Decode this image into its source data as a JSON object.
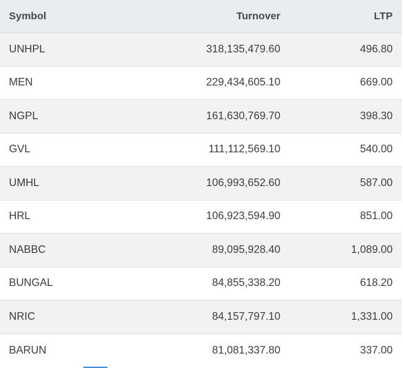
{
  "table": {
    "columns": [
      "Symbol",
      "Turnover",
      "LTP"
    ],
    "rows": [
      {
        "symbol": "UNHPL",
        "turnover": "318,135,479.60",
        "ltp": "496.80"
      },
      {
        "symbol": "MEN",
        "turnover": "229,434,605.10",
        "ltp": "669.00"
      },
      {
        "symbol": "NGPL",
        "turnover": "161,630,769.70",
        "ltp": "398.30"
      },
      {
        "symbol": "GVL",
        "turnover": "111,112,569.10",
        "ltp": "540.00"
      },
      {
        "symbol": "UMHL",
        "turnover": "106,993,652.60",
        "ltp": "587.00"
      },
      {
        "symbol": "HRL",
        "turnover": "106,923,594.90",
        "ltp": "851.00"
      },
      {
        "symbol": "NABBC",
        "turnover": "89,095,928.40",
        "ltp": "1,089.00"
      },
      {
        "symbol": "BUNGAL",
        "turnover": "84,855,338.20",
        "ltp": "618.20"
      },
      {
        "symbol": "NRIC",
        "turnover": "84,157,797.10",
        "ltp": "1,331.00"
      },
      {
        "symbol": "BARUN",
        "turnover": "81,081,337.80",
        "ltp": "337.00"
      }
    ]
  },
  "colors": {
    "header_bg": "#e8edf1",
    "row_alt_bg": "#f2f2f2",
    "accent": "#4a90d9"
  }
}
